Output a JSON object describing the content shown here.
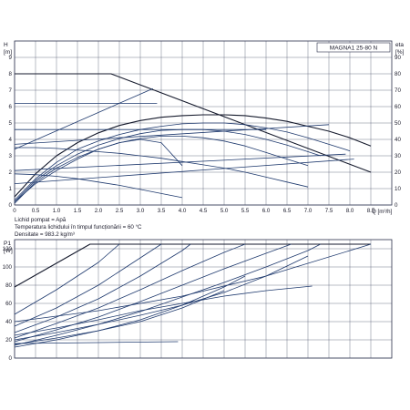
{
  "chart_data": [
    {
      "type": "line",
      "model_label": "MAGNA1 25-80 N",
      "y_unit_top": "H",
      "y_unit_bottom": "[m]",
      "y2_unit_top": "eta",
      "y2_unit_bottom": "[%]",
      "x_unit": "Q [m³/h]",
      "xlim": [
        0,
        9
      ],
      "ylim": [
        0,
        10
      ],
      "y2lim": [
        0,
        100
      ],
      "x_ticks": [
        "0",
        "0.5",
        "1.0",
        "1.5",
        "2.0",
        "2.5",
        "3.0",
        "3.5",
        "4.0",
        "4.5",
        "5.0",
        "5.5",
        "6.0",
        "6.5",
        "7.0",
        "7.5",
        "8.0",
        "8.5"
      ],
      "y_ticks": [
        "0",
        "1",
        "2",
        "3",
        "4",
        "5",
        "6",
        "7",
        "8",
        "9"
      ],
      "y2_ticks": [
        "0",
        "10",
        "20",
        "30",
        "40",
        "50",
        "60",
        "70",
        "80",
        "90"
      ],
      "grid": true,
      "notes": [
        "Lichid pompat = Apă",
        "Temperatura lichidului în timpul funcționării = 60 °C",
        "Densitate = 983.2 kg/m³"
      ],
      "series": [
        {
          "x": [
            0,
            2.3,
            8.5
          ],
          "y": [
            8,
            8,
            2
          ]
        },
        {
          "x": [
            0,
            0.5,
            1,
            1.5,
            2,
            2.5,
            3,
            3.5,
            4,
            4.5,
            5,
            5.5,
            6,
            6.5,
            7,
            7.5,
            8,
            8.5
          ],
          "y": [
            0.5,
            1.9,
            3,
            3.8,
            4.4,
            4.85,
            5.15,
            5.35,
            5.45,
            5.5,
            5.5,
            5.45,
            5.3,
            5.1,
            4.8,
            4.5,
            4.1,
            3.6
          ]
        },
        {
          "x": [
            0,
            3.4
          ],
          "y": [
            6.2,
            6.2
          ]
        },
        {
          "x": [
            0,
            3.3
          ],
          "y": [
            3.4,
            7.1
          ]
        },
        {
          "x": [
            0,
            7.5
          ],
          "y": [
            3.7,
            4.9
          ]
        },
        {
          "x": [
            0,
            6
          ],
          "y": [
            4.6,
            4.6
          ]
        },
        {
          "x": [
            0,
            7.9
          ],
          "y": [
            2.1,
            3.1
          ]
        },
        {
          "x": [
            0,
            8.1
          ],
          "y": [
            1.3,
            2.8
          ]
        },
        {
          "x": [
            0,
            0.5,
            1,
            1.5,
            2,
            2.5,
            3,
            3.5,
            4,
            4.5,
            5,
            5.5,
            6,
            6.5,
            7,
            7.5,
            8
          ],
          "y": [
            0.3,
            1.6,
            2.6,
            3.4,
            3.9,
            4.3,
            4.6,
            4.8,
            4.95,
            5.0,
            5.0,
            4.9,
            4.7,
            4.45,
            4.1,
            3.7,
            3.3
          ]
        },
        {
          "x": [
            0,
            0.5,
            1,
            1.5,
            2,
            2.5,
            3,
            3.5,
            4,
            4.5,
            5,
            5.5,
            6,
            6.5,
            7,
            7.3
          ],
          "y": [
            0.2,
            1.5,
            2.4,
            3.1,
            3.65,
            4.05,
            4.35,
            4.55,
            4.6,
            4.6,
            4.5,
            4.3,
            4.0,
            3.65,
            3.25,
            3.0
          ]
        },
        {
          "x": [
            0,
            0.5,
            1,
            1.5,
            2,
            2.5,
            3,
            3.5,
            4,
            4.5,
            5,
            5.5,
            6,
            6.5,
            7
          ],
          "y": [
            0.1,
            1.4,
            2.25,
            2.9,
            3.4,
            3.8,
            4.05,
            4.2,
            4.2,
            4.1,
            3.9,
            3.6,
            3.2,
            2.8,
            2.4
          ]
        },
        {
          "x": [
            0,
            0.5,
            1,
            1.5,
            2,
            2.5,
            3,
            3.5,
            4,
            4.5,
            5,
            5.5,
            6,
            6.5,
            7
          ],
          "y": [
            3.5,
            3.5,
            3.45,
            3.35,
            3.25,
            3.15,
            3.0,
            2.85,
            2.65,
            2.45,
            2.25,
            2.0,
            1.7,
            1.4,
            1.1
          ]
        },
        {
          "x": [
            0,
            0.5,
            1,
            1.5,
            2,
            2.5,
            3,
            3.5,
            4
          ],
          "y": [
            1.9,
            1.85,
            1.75,
            1.6,
            1.4,
            1.2,
            0.95,
            0.7,
            0.45
          ]
        },
        {
          "x": [
            0,
            0.5,
            1,
            1.5,
            2,
            2.5,
            3,
            3.5,
            4
          ],
          "y": [
            0.2,
            1.3,
            2.1,
            2.8,
            3.4,
            3.8,
            4.0,
            3.8,
            2.4
          ]
        }
      ]
    },
    {
      "type": "line",
      "y_unit_top": "P1",
      "y_unit_bottom": "[W]",
      "xlim": [
        0,
        9
      ],
      "ylim": [
        0,
        130
      ],
      "y_ticks": [
        "0",
        "20",
        "40",
        "60",
        "80",
        "100",
        "120"
      ],
      "grid": true,
      "series": [
        {
          "x": [
            0,
            1.8,
            8.5
          ],
          "y": [
            78,
            125,
            125
          ]
        },
        {
          "x": [
            0,
            1,
            2,
            2.5
          ],
          "y": [
            48,
            75,
            105,
            125
          ]
        },
        {
          "x": [
            0,
            1,
            2,
            3,
            3.5
          ],
          "y": [
            35,
            55,
            80,
            110,
            125
          ]
        },
        {
          "x": [
            0,
            1,
            2,
            3,
            4,
            4.2
          ],
          "y": [
            28,
            45,
            65,
            90,
            118,
            125
          ]
        },
        {
          "x": [
            0,
            1,
            2,
            3,
            4,
            5,
            5.5
          ],
          "y": [
            22,
            38,
            55,
            75,
            96,
            116,
            125
          ]
        },
        {
          "x": [
            0,
            1,
            2,
            3,
            4,
            5,
            6,
            6.6
          ],
          "y": [
            18,
            31,
            45,
            62,
            80,
            98,
            115,
            125
          ]
        },
        {
          "x": [
            0,
            1,
            2,
            3,
            4,
            5,
            6,
            7,
            7.3
          ],
          "y": [
            14,
            25,
            37,
            51,
            67,
            83,
            100,
            118,
            125
          ]
        },
        {
          "x": [
            0,
            2,
            4,
            6,
            8.5
          ],
          "y": [
            40,
            52,
            68,
            90,
            125
          ]
        },
        {
          "x": [
            0,
            1,
            2,
            3,
            4,
            5,
            6,
            7.1
          ],
          "y": [
            25,
            33,
            42,
            52,
            60,
            68,
            74,
            79
          ]
        },
        {
          "x": [
            0,
            1,
            2,
            3,
            4,
            5,
            6,
            7
          ],
          "y": [
            20,
            28,
            37,
            47,
            58,
            72,
            90,
            112
          ]
        },
        {
          "x": [
            0,
            1,
            2,
            3,
            4,
            5
          ],
          "y": [
            15,
            22,
            30,
            40,
            55,
            74
          ]
        },
        {
          "x": [
            0,
            1,
            2,
            3,
            4,
            5,
            5.5
          ],
          "y": [
            12,
            20,
            30,
            42,
            58,
            78,
            90
          ]
        },
        {
          "x": [
            0,
            2,
            3.9
          ],
          "y": [
            16,
            17,
            18
          ]
        }
      ]
    }
  ]
}
